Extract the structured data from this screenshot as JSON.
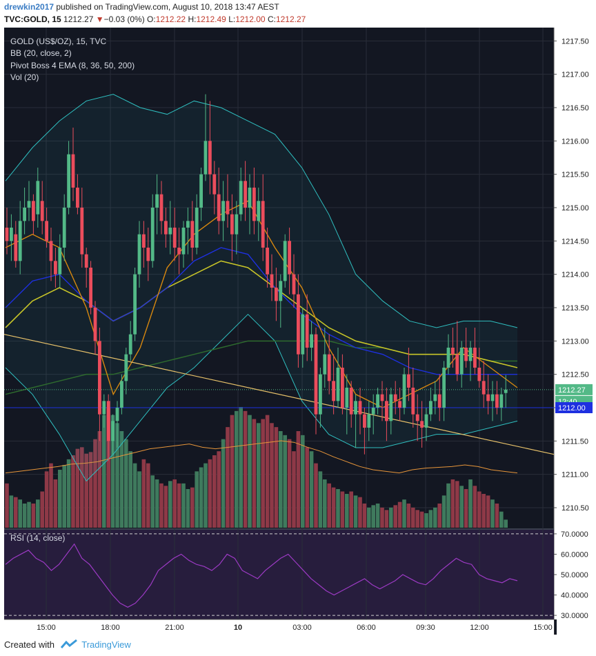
{
  "header": {
    "author": "drewkin2017",
    "published_text": " published on TradingView.com, August 10, 2018 13:47 AEST",
    "symbol": "TVC:GOLD, 15",
    "last": "1212.27",
    "change_arrow": "▼",
    "change": "−0.03 (0%)",
    "o_label": "O:",
    "o_value": "1212.22",
    "h_label": "H:",
    "h_value": "1212.49",
    "l_label": "L:",
    "l_value": "1212.00",
    "c_label": "C:",
    "c_value": "1212.27"
  },
  "legend": {
    "title": "GOLD (US$/OZ), 15, TVC",
    "bb": "BB (20, close, 2)",
    "ema": "Pivot Boss 4 EMA (8, 36, 50, 200)",
    "vol": "Vol (20)",
    "rsi": "RSI (14, close)"
  },
  "price_labels": {
    "last": "1212.27",
    "countdown": "12:40",
    "marker": "1212.00"
  },
  "footer": {
    "created_with": "Created with",
    "brand": "TradingView"
  },
  "colors": {
    "bg": "#131722",
    "up": "#53b987",
    "down": "#eb4d5c",
    "bb": "#2fbfc0",
    "ema8": "#d8880f",
    "ema36": "#1e30e0",
    "ema50": "#c7c428",
    "ema200": "#2e6b2e",
    "trend": "#e8c26a",
    "hline": "#1e30e0",
    "rsi": "#9c3ac4",
    "rsi_bg": "#271d3d"
  },
  "chart_data": [
    {
      "type": "candlestick",
      "title": "GOLD (US$/OZ), 15, TVC",
      "ylim": [
        1210.2,
        1217.7
      ],
      "y_ticks": [
        "1217.50",
        "1217.00",
        "1216.50",
        "1216.00",
        "1215.50",
        "1215.00",
        "1214.50",
        "1214.00",
        "1213.50",
        "1213.00",
        "1212.50",
        "1212.00",
        "1211.50",
        "1211.00",
        "1210.50"
      ],
      "x_ticks": [
        "15:00",
        "18:00",
        "21:00",
        "10",
        "03:00",
        "06:00",
        "09:30",
        "12:00",
        "15:00"
      ],
      "candles": [
        [
          1214.7,
          1215.0,
          1214.3,
          1214.5
        ],
        [
          1214.5,
          1214.9,
          1214.2,
          1214.7
        ],
        [
          1214.6,
          1214.8,
          1214.1,
          1214.2
        ],
        [
          1214.2,
          1215.1,
          1214.0,
          1214.8
        ],
        [
          1214.8,
          1215.3,
          1214.6,
          1215.0
        ],
        [
          1215.0,
          1215.4,
          1214.8,
          1215.1
        ],
        [
          1215.1,
          1215.2,
          1214.6,
          1214.8
        ],
        [
          1214.9,
          1215.6,
          1214.7,
          1215.4
        ],
        [
          1215.1,
          1215.4,
          1214.6,
          1214.8
        ],
        [
          1214.8,
          1215.0,
          1214.4,
          1214.5
        ],
        [
          1214.5,
          1214.7,
          1213.9,
          1214.2
        ],
        [
          1214.2,
          1214.4,
          1213.8,
          1214.0
        ],
        [
          1214.0,
          1214.6,
          1213.8,
          1214.4
        ],
        [
          1214.4,
          1215.2,
          1214.2,
          1215.0
        ],
        [
          1215.0,
          1216.0,
          1214.9,
          1215.8
        ],
        [
          1215.8,
          1216.2,
          1215.1,
          1215.3
        ],
        [
          1215.3,
          1215.5,
          1214.9,
          1215.0
        ],
        [
          1215.0,
          1215.3,
          1214.1,
          1214.3
        ],
        [
          1214.3,
          1214.4,
          1213.8,
          1214.1
        ],
        [
          1214.1,
          1214.2,
          1213.4,
          1213.5
        ],
        [
          1213.5,
          1213.6,
          1212.8,
          1213.0
        ],
        [
          1213.0,
          1213.2,
          1211.5,
          1211.9
        ],
        [
          1211.9,
          1212.2,
          1211.7,
          1212.1
        ],
        [
          1212.1,
          1212.2,
          1211.2,
          1211.5
        ],
        [
          1211.5,
          1211.9,
          1211.3,
          1211.8
        ],
        [
          1211.8,
          1212.1,
          1211.4,
          1212.0
        ],
        [
          1212.0,
          1212.5,
          1211.9,
          1212.4
        ],
        [
          1212.4,
          1212.9,
          1212.2,
          1212.8
        ],
        [
          1212.8,
          1213.3,
          1212.7,
          1213.1
        ],
        [
          1213.1,
          1214.1,
          1213.0,
          1214.0
        ],
        [
          1214.0,
          1214.8,
          1213.8,
          1214.6
        ],
        [
          1214.6,
          1214.8,
          1214.1,
          1214.4
        ],
        [
          1214.4,
          1214.7,
          1213.9,
          1214.2
        ],
        [
          1214.2,
          1215.2,
          1214.1,
          1215.0
        ],
        [
          1215.0,
          1215.5,
          1214.6,
          1215.2
        ],
        [
          1215.2,
          1215.4,
          1214.6,
          1214.8
        ],
        [
          1214.8,
          1215.0,
          1214.4,
          1214.6
        ],
        [
          1214.6,
          1215.1,
          1214.3,
          1214.7
        ],
        [
          1214.7,
          1215.0,
          1214.2,
          1214.4
        ],
        [
          1214.4,
          1214.7,
          1214.0,
          1214.3
        ],
        [
          1214.3,
          1214.8,
          1214.1,
          1214.7
        ],
        [
          1214.7,
          1215.0,
          1214.3,
          1214.8
        ],
        [
          1214.8,
          1215.1,
          1214.2,
          1214.4
        ],
        [
          1214.4,
          1215.2,
          1214.3,
          1215.0
        ],
        [
          1215.0,
          1215.6,
          1214.8,
          1215.5
        ],
        [
          1215.5,
          1216.7,
          1215.4,
          1216.0
        ],
        [
          1216.0,
          1216.6,
          1215.2,
          1215.5
        ],
        [
          1215.5,
          1215.7,
          1214.9,
          1215.2
        ],
        [
          1215.2,
          1215.6,
          1214.6,
          1214.8
        ],
        [
          1214.8,
          1215.4,
          1214.5,
          1215.1
        ],
        [
          1215.1,
          1215.5,
          1214.7,
          1214.9
        ],
        [
          1214.9,
          1215.2,
          1214.2,
          1214.6
        ],
        [
          1214.6,
          1215.1,
          1214.3,
          1214.9
        ],
        [
          1214.9,
          1215.6,
          1214.8,
          1215.4
        ],
        [
          1215.4,
          1215.7,
          1214.8,
          1215.0
        ],
        [
          1215.0,
          1215.5,
          1214.6,
          1215.3
        ],
        [
          1215.3,
          1215.6,
          1214.6,
          1214.8
        ],
        [
          1214.8,
          1215.3,
          1214.5,
          1215.1
        ],
        [
          1215.1,
          1215.5,
          1214.2,
          1214.4
        ],
        [
          1214.4,
          1214.7,
          1213.8,
          1214.0
        ],
        [
          1214.0,
          1214.3,
          1213.6,
          1213.8
        ],
        [
          1213.8,
          1214.1,
          1213.3,
          1213.6
        ],
        [
          1213.6,
          1214.0,
          1213.2,
          1213.9
        ],
        [
          1213.9,
          1214.6,
          1213.8,
          1214.5
        ],
        [
          1214.5,
          1214.7,
          1213.7,
          1214.0
        ],
        [
          1214.0,
          1214.3,
          1213.5,
          1213.7
        ],
        [
          1213.7,
          1214.0,
          1212.6,
          1212.8
        ],
        [
          1212.8,
          1213.5,
          1212.6,
          1213.4
        ],
        [
          1213.4,
          1213.7,
          1212.7,
          1212.9
        ],
        [
          1212.9,
          1213.3,
          1212.7,
          1213.1
        ],
        [
          1213.1,
          1213.2,
          1211.6,
          1211.9
        ],
        [
          1211.9,
          1212.6,
          1211.7,
          1212.5
        ],
        [
          1212.5,
          1213.2,
          1212.3,
          1212.8
        ],
        [
          1212.8,
          1213.1,
          1212.2,
          1212.4
        ],
        [
          1212.4,
          1212.8,
          1211.9,
          1212.1
        ],
        [
          1212.1,
          1212.9,
          1212.0,
          1212.6
        ],
        [
          1212.6,
          1212.8,
          1211.9,
          1212.0
        ],
        [
          1212.0,
          1212.5,
          1211.6,
          1212.3
        ],
        [
          1212.3,
          1212.4,
          1211.7,
          1211.9
        ],
        [
          1211.9,
          1212.2,
          1211.4,
          1212.1
        ],
        [
          1212.1,
          1212.3,
          1211.6,
          1211.9
        ],
        [
          1211.9,
          1212.0,
          1211.3,
          1211.7
        ],
        [
          1211.7,
          1212.1,
          1211.5,
          1211.9
        ],
        [
          1211.9,
          1212.2,
          1211.6,
          1212.0
        ],
        [
          1212.0,
          1212.3,
          1211.9,
          1212.2
        ],
        [
          1212.2,
          1212.4,
          1211.8,
          1212.1
        ],
        [
          1212.1,
          1212.3,
          1211.5,
          1211.8
        ],
        [
          1211.8,
          1212.3,
          1211.6,
          1212.2
        ],
        [
          1212.2,
          1212.4,
          1211.9,
          1212.1
        ],
        [
          1212.1,
          1212.3,
          1211.8,
          1212.0
        ],
        [
          1212.0,
          1212.6,
          1211.9,
          1212.5
        ],
        [
          1212.5,
          1212.9,
          1212.1,
          1212.3
        ],
        [
          1212.3,
          1212.6,
          1211.7,
          1211.9
        ],
        [
          1211.9,
          1212.2,
          1211.5,
          1211.8
        ],
        [
          1211.8,
          1212.1,
          1211.4,
          1211.7
        ],
        [
          1211.7,
          1212.0,
          1211.5,
          1211.9
        ],
        [
          1211.9,
          1212.3,
          1211.8,
          1212.1
        ],
        [
          1212.1,
          1212.4,
          1211.9,
          1212.2
        ],
        [
          1212.2,
          1212.5,
          1211.8,
          1212.0
        ],
        [
          1212.0,
          1212.7,
          1211.8,
          1212.6
        ],
        [
          1212.6,
          1213.1,
          1212.5,
          1212.9
        ],
        [
          1212.9,
          1213.2,
          1212.6,
          1212.8
        ],
        [
          1212.8,
          1213.3,
          1212.4,
          1212.5
        ],
        [
          1212.5,
          1213.0,
          1212.3,
          1212.9
        ],
        [
          1212.9,
          1213.2,
          1212.6,
          1212.7
        ],
        [
          1212.7,
          1213.0,
          1212.4,
          1212.9
        ],
        [
          1212.9,
          1213.2,
          1212.5,
          1212.6
        ],
        [
          1212.6,
          1212.9,
          1212.3,
          1212.4
        ],
        [
          1212.4,
          1212.7,
          1212.0,
          1212.2
        ],
        [
          1212.2,
          1212.5,
          1211.9,
          1212.1
        ],
        [
          1212.1,
          1212.4,
          1211.8,
          1212.2
        ],
        [
          1212.2,
          1212.4,
          1211.9,
          1212.0
        ],
        [
          1212.0,
          1212.3,
          1211.8,
          1212.2
        ],
        [
          1212.22,
          1212.49,
          1212.0,
          1212.27
        ]
      ],
      "bb_upper": [
        1215.4,
        1215.9,
        1216.3,
        1216.6,
        1216.7,
        1216.5,
        1216.4,
        1216.6,
        1216.5,
        1216.3,
        1216.1,
        1215.6,
        1214.9,
        1214.0,
        1213.6,
        1213.3,
        1213.2,
        1213.3,
        1213.3,
        1213.2
      ],
      "bb_lower": [
        1212.6,
        1212.2,
        1211.6,
        1210.9,
        1211.3,
        1211.8,
        1212.3,
        1212.6,
        1213.0,
        1213.4,
        1213.0,
        1212.1,
        1211.6,
        1211.4,
        1211.4,
        1211.5,
        1211.6,
        1211.6,
        1211.7,
        1211.8
      ],
      "ema8": [
        1214.4,
        1214.6,
        1214.4,
        1213.5,
        1212.2,
        1212.9,
        1214.1,
        1214.6,
        1214.9,
        1215.1,
        1214.4,
        1213.8,
        1212.9,
        1212.2,
        1212.0,
        1212.2,
        1212.4,
        1212.9,
        1212.6,
        1212.3
      ],
      "ema36": [
        1213.5,
        1213.9,
        1214.0,
        1213.6,
        1213.3,
        1213.5,
        1213.8,
        1214.2,
        1214.4,
        1214.3,
        1213.8,
        1213.4,
        1213.1,
        1212.9,
        1212.8,
        1212.6,
        1212.5,
        1212.5,
        1212.5,
        1212.5
      ],
      "ema50": [
        1213.2,
        1213.6,
        1213.8,
        1213.6,
        1213.3,
        1213.5,
        1213.8,
        1214.0,
        1214.2,
        1214.1,
        1213.8,
        1213.5,
        1213.2,
        1213.0,
        1212.9,
        1212.8,
        1212.8,
        1212.8,
        1212.7,
        1212.6
      ],
      "ema200": [
        1212.2,
        1212.3,
        1212.4,
        1212.5,
        1212.5,
        1212.6,
        1212.7,
        1212.8,
        1212.9,
        1213.0,
        1213.0,
        1213.0,
        1213.0,
        1212.9,
        1212.9,
        1212.8,
        1212.8,
        1212.8,
        1212.7,
        1212.7
      ],
      "trendline": {
        "from": [
          0,
          1213.1
        ],
        "to": [
          1,
          1211.3
        ]
      },
      "hline": 1212.0
    },
    {
      "type": "bar",
      "title": "Vol (20)",
      "values": [
        55,
        40,
        38,
        35,
        30,
        32,
        30,
        35,
        45,
        70,
        80,
        60,
        72,
        78,
        85,
        90,
        98,
        100,
        92,
        94,
        110,
        120,
        140,
        150,
        140,
        130,
        120,
        110,
        95,
        80,
        70,
        85,
        80,
        65,
        60,
        55,
        52,
        58,
        60,
        55,
        55,
        48,
        50,
        70,
        75,
        80,
        85,
        90,
        95,
        110,
        125,
        140,
        145,
        150,
        145,
        140,
        135,
        130,
        135,
        140,
        130,
        125,
        120,
        115,
        110,
        95,
        120,
        115,
        100,
        95,
        80,
        70,
        60,
        55,
        50,
        48,
        45,
        42,
        45,
        40,
        38,
        30,
        25,
        28,
        30,
        25,
        22,
        25,
        28,
        32,
        35,
        30,
        25,
        22,
        20,
        18,
        22,
        25,
        30,
        40,
        55,
        60,
        58,
        52,
        48,
        60,
        52,
        45,
        42,
        40,
        35,
        30,
        20,
        10
      ],
      "vol_ma": [
        68,
        70,
        72,
        74,
        76,
        79,
        80,
        82,
        86,
        90,
        94,
        98,
        100,
        102,
        104,
        100,
        98,
        100,
        102,
        104,
        106,
        108,
        106,
        100,
        95,
        88,
        82,
        76,
        72,
        70,
        68,
        72,
        74,
        75,
        76,
        78,
        76,
        72,
        70,
        68
      ]
    },
    {
      "type": "line",
      "title": "RSI (14, close)",
      "ylim": [
        28,
        72
      ],
      "y_ticks": [
        "70.0000",
        "60.0000",
        "50.0000",
        "40.0000",
        "30.0000"
      ],
      "levels": [
        70,
        30
      ],
      "values": [
        55,
        58,
        60,
        62,
        58,
        56,
        52,
        55,
        60,
        65,
        58,
        55,
        50,
        45,
        40,
        36,
        34,
        36,
        40,
        45,
        52,
        55,
        58,
        60,
        57,
        55,
        54,
        52,
        55,
        60,
        58,
        52,
        50,
        48,
        52,
        55,
        58,
        60,
        56,
        52,
        48,
        45,
        42,
        40,
        42,
        44,
        46,
        48,
        45,
        43,
        45,
        47,
        50,
        48,
        46,
        45,
        48,
        52,
        55,
        58,
        56,
        55,
        50,
        48,
        47,
        46,
        48,
        47
      ]
    }
  ]
}
